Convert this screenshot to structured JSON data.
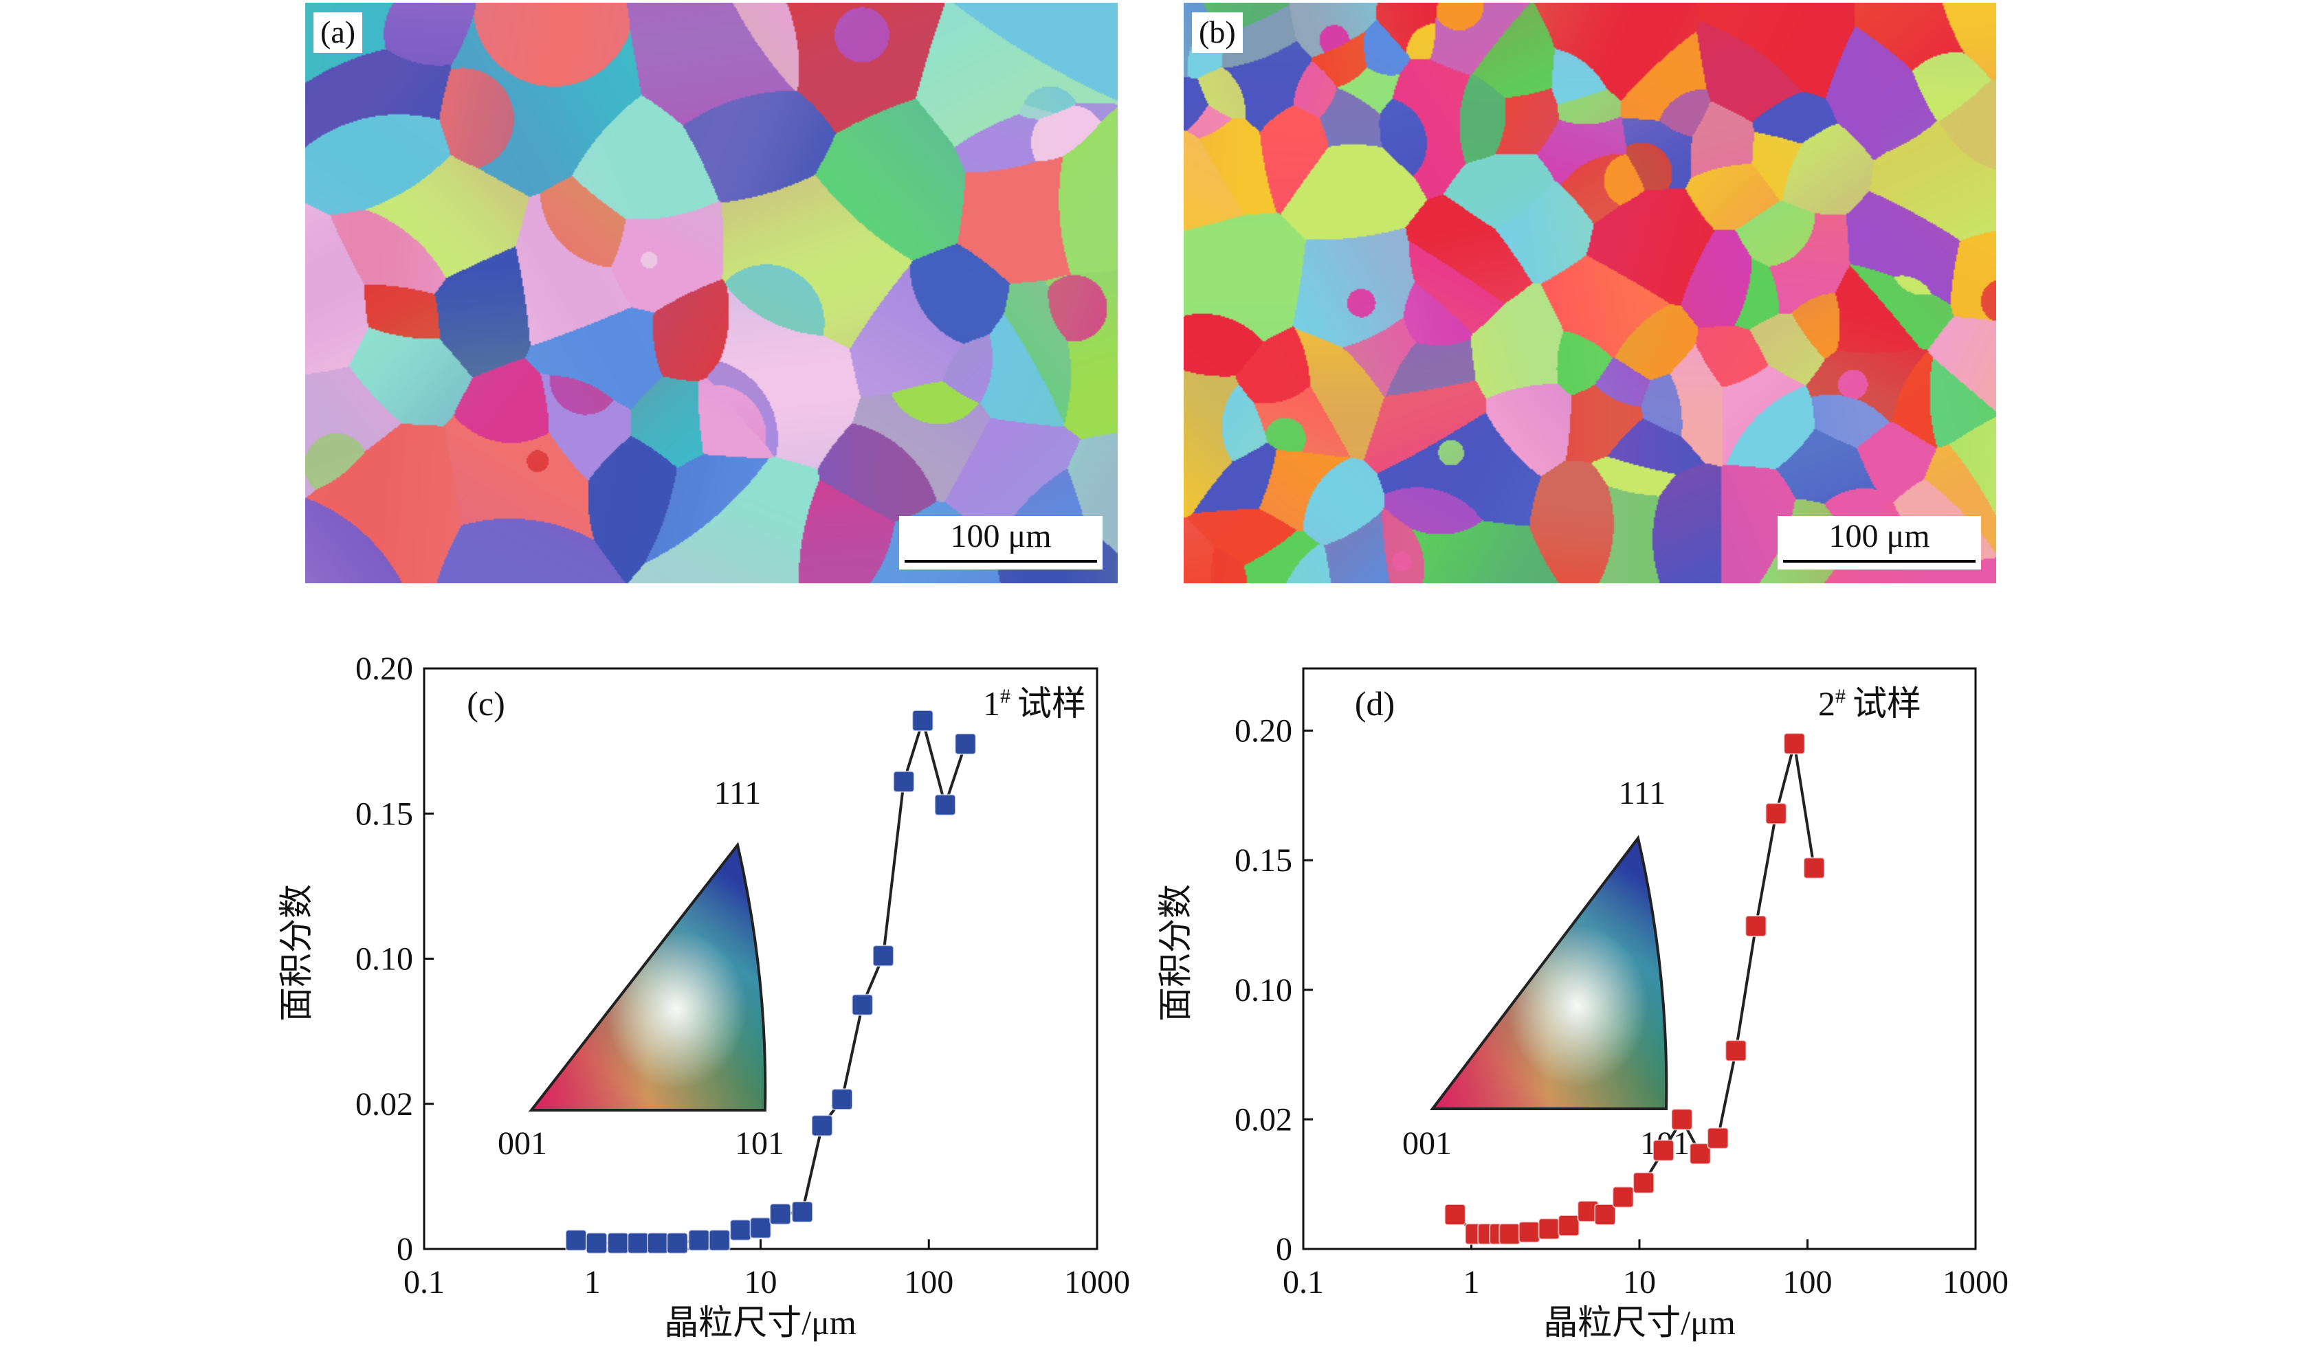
{
  "maps": [
    {
      "label": "(a)",
      "scale_bar": "100 μm",
      "palette": [
        "#e23a3a",
        "#d9398f",
        "#b44fb6",
        "#7a5cc4",
        "#3d53b5",
        "#5b8ce0",
        "#6fc6e0",
        "#8fe0d0",
        "#5fd07a",
        "#9ddc4f",
        "#c8e87a",
        "#e9a0d8",
        "#f2c6e8",
        "#3fb8c8",
        "#a88be0",
        "#f07070"
      ]
    },
    {
      "label": "(b)",
      "scale_bar": "100 μm",
      "palette": [
        "#e8283c",
        "#f0462e",
        "#f7942a",
        "#f5c62f",
        "#e83a8a",
        "#d43fb0",
        "#9c4fc8",
        "#4c55c0",
        "#5a8de0",
        "#76d0e4",
        "#8ae07a",
        "#5ccf5a",
        "#c8e86a",
        "#f2a0d0",
        "#ff5a5a",
        "#e85aa8"
      ]
    }
  ],
  "ipf_legend": {
    "corner_111": "111",
    "corner_001": "001",
    "corner_101": "101",
    "colors": {
      "001": "#e8203a",
      "101": "#3cb832",
      "111": "#2a3ca0",
      "center": "#ffffff"
    }
  },
  "chart_data": [
    {
      "type": "line",
      "panel_label": "(c)",
      "sample_label": "1# 试样",
      "sample_number": "1",
      "sample_sup": "#",
      "sample_word": "试样",
      "xlabel": "晶粒尺寸/μm",
      "ylabel": "面积分数",
      "xscale": "log",
      "xlim": [
        0.1,
        1000
      ],
      "xticks": [
        "0.1",
        "1",
        "10",
        "100",
        "1000"
      ],
      "yticks": [
        "0",
        "0.02",
        "0.10",
        "0.15",
        "0.20"
      ],
      "ytick_values": [
        0,
        0.02,
        0.1,
        0.15,
        0.2
      ],
      "ylim": [
        0,
        0.2
      ],
      "marker": "square",
      "color": "#2b4aa0",
      "grid": false,
      "x": [
        0.8,
        1.06,
        1.42,
        1.87,
        2.45,
        3.2,
        4.3,
        5.7,
        7.6,
        10.0,
        13.1,
        17.7,
        23.2,
        30.5,
        40.3,
        53.6,
        71,
        92,
        125,
        165
      ],
      "y": [
        0.0012,
        0.0008,
        0.0008,
        0.0008,
        0.0008,
        0.0008,
        0.0012,
        0.0012,
        0.0026,
        0.0029,
        0.0048,
        0.0051,
        0.017,
        0.0225,
        0.0746,
        0.101,
        0.161,
        0.182,
        0.153,
        0.174
      ]
    },
    {
      "type": "line",
      "panel_label": "(d)",
      "sample_label": "2# 试样",
      "sample_number": "2",
      "sample_sup": "#",
      "sample_word": "试样",
      "xlabel": "晶粒尺寸/μm",
      "ylabel": "面积分数",
      "xscale": "log",
      "xlim": [
        0.1,
        1000
      ],
      "xticks": [
        "0.1",
        "1",
        "10",
        "100",
        "1000"
      ],
      "yticks": [
        "0",
        "0.02",
        "0.10",
        "0.15",
        "0.20"
      ],
      "ytick_values": [
        0,
        0.02,
        0.1,
        0.15,
        0.2
      ],
      "ylim": [
        0,
        0.224
      ],
      "marker": "square",
      "color": "#d42a2a",
      "grid": false,
      "x": [
        0.8,
        1.06,
        1.26,
        1.48,
        1.69,
        2.21,
        2.9,
        3.8,
        4.95,
        6.25,
        8.0,
        10.6,
        13.9,
        17.9,
        23.0,
        29.3,
        37.5,
        49.3,
        65,
        83.5,
        109.5
      ],
      "y": [
        0.0053,
        0.0023,
        0.0023,
        0.0023,
        0.0023,
        0.0026,
        0.0031,
        0.0036,
        0.0058,
        0.0053,
        0.008,
        0.0102,
        0.0152,
        0.02,
        0.0147,
        0.0171,
        0.0624,
        0.1246,
        0.168,
        0.195,
        0.147
      ]
    }
  ]
}
